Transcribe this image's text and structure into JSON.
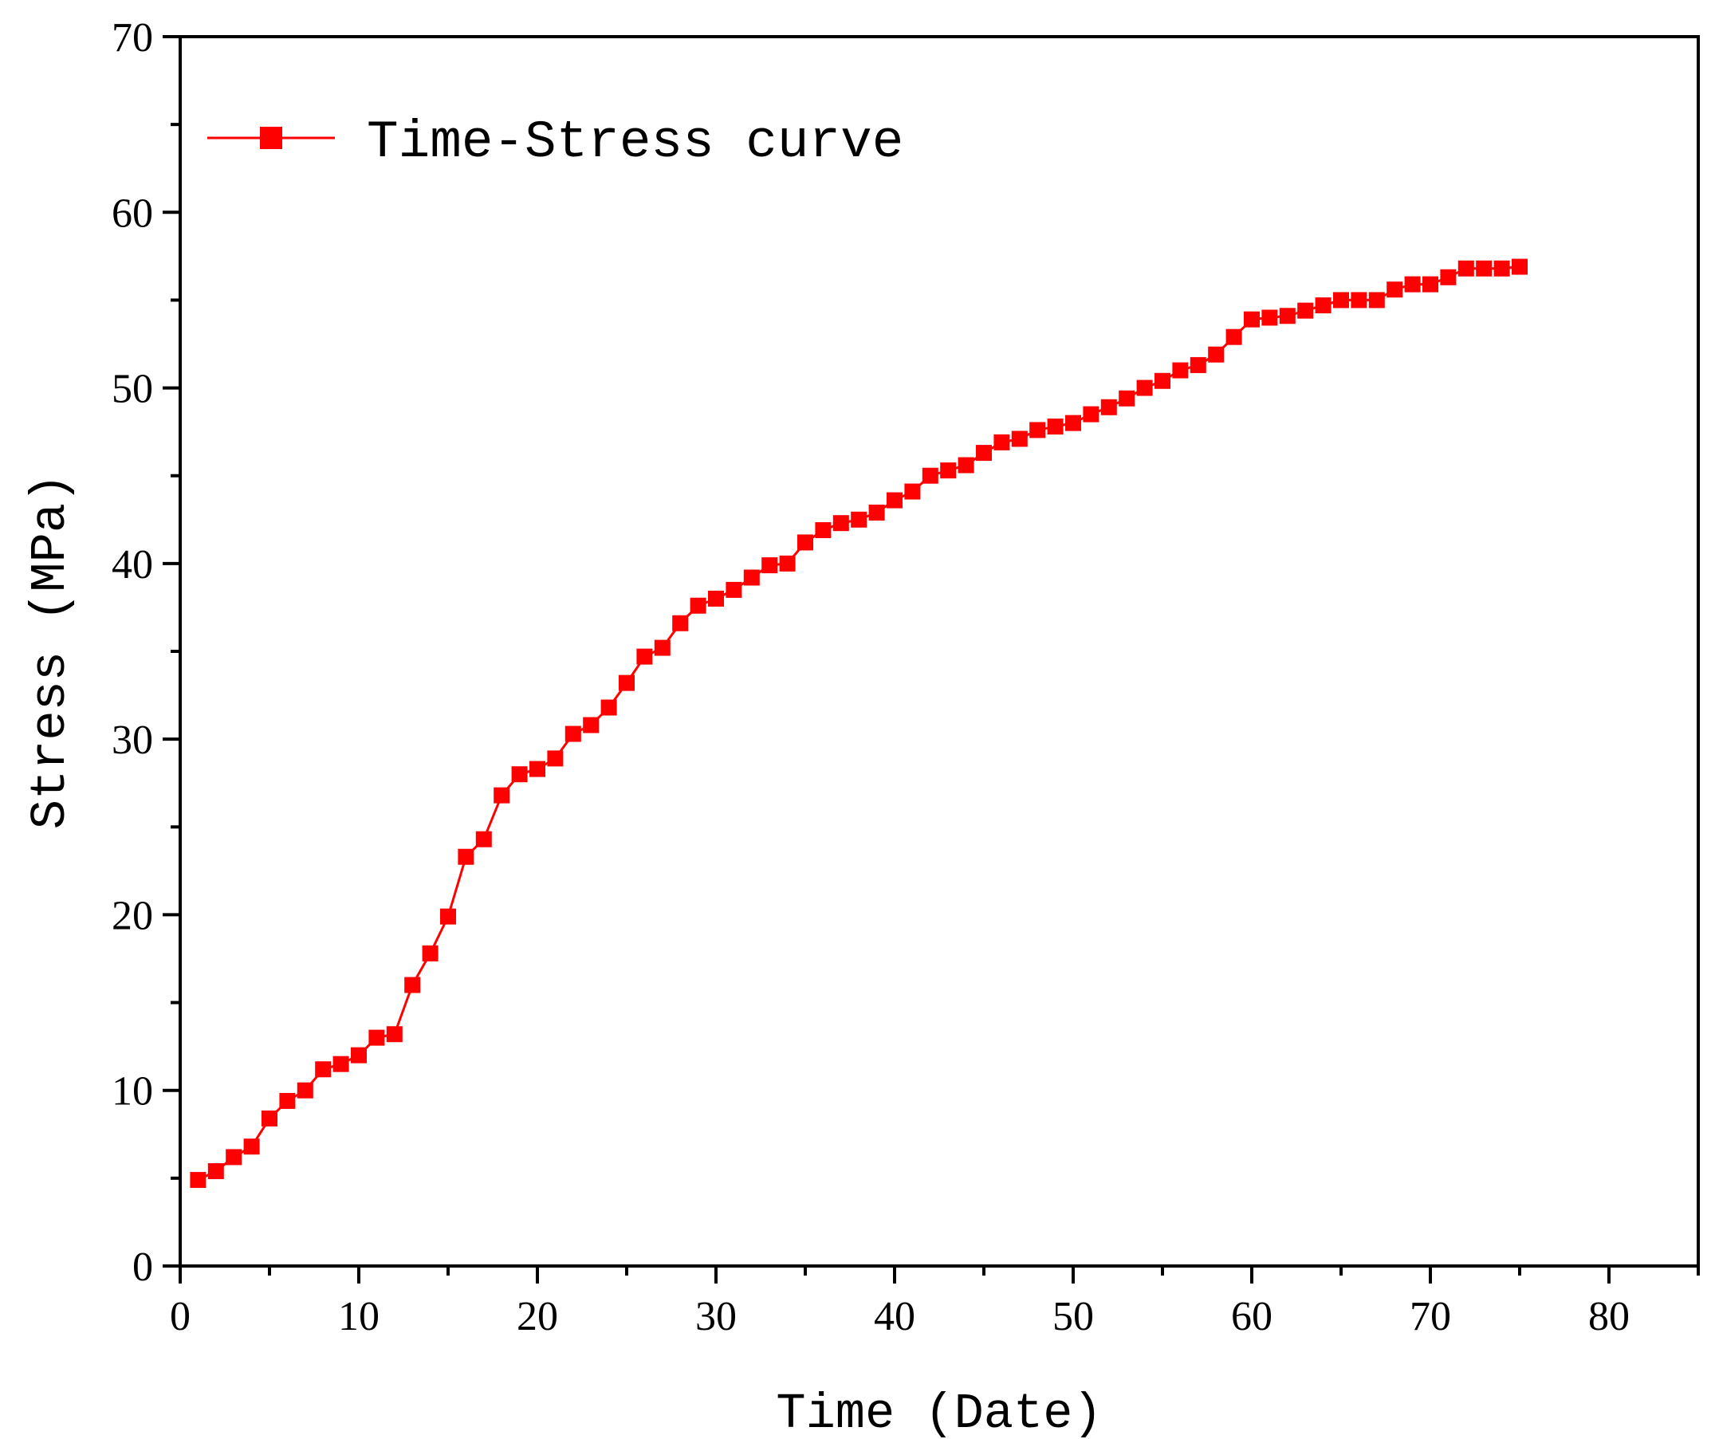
{
  "chart_data": {
    "type": "line",
    "title": "",
    "xlabel": "Time (Date)",
    "ylabel": "Stress (MPa)",
    "xlim": [
      0,
      85
    ],
    "ylim": [
      0,
      70
    ],
    "xticks": [
      0,
      10,
      20,
      30,
      40,
      50,
      60,
      70,
      80
    ],
    "yticks": [
      0,
      10,
      20,
      30,
      40,
      50,
      60,
      70
    ],
    "grid": false,
    "legend_position": "top-left",
    "series": [
      {
        "name": "Time-Stress curve",
        "color": "#ff0000",
        "marker": "square",
        "x": [
          1,
          2,
          3,
          4,
          5,
          6,
          7,
          8,
          9,
          10,
          11,
          12,
          13,
          14,
          15,
          16,
          17,
          18,
          19,
          20,
          21,
          22,
          23,
          24,
          25,
          26,
          27,
          28,
          29,
          30,
          31,
          32,
          33,
          34,
          35,
          36,
          37,
          38,
          39,
          40,
          41,
          42,
          43,
          44,
          45,
          46,
          47,
          48,
          49,
          50,
          51,
          52,
          53,
          54,
          55,
          56,
          57,
          58,
          59,
          60,
          61,
          62,
          63,
          64,
          65,
          66,
          67,
          68,
          69,
          70,
          71,
          72,
          73,
          74,
          75
        ],
        "y": [
          4.9,
          5.4,
          6.2,
          6.8,
          8.4,
          9.4,
          10.0,
          11.2,
          11.5,
          12.0,
          13.0,
          13.2,
          16.0,
          17.8,
          19.9,
          23.3,
          24.3,
          26.8,
          28.0,
          28.3,
          28.9,
          30.3,
          30.8,
          31.8,
          33.2,
          34.7,
          35.2,
          36.6,
          37.6,
          38.0,
          38.5,
          39.2,
          39.9,
          40.0,
          41.2,
          41.9,
          42.3,
          42.5,
          42.9,
          43.6,
          44.1,
          45.0,
          45.3,
          45.6,
          46.3,
          46.9,
          47.1,
          47.6,
          47.8,
          48.0,
          48.5,
          48.9,
          49.4,
          50.0,
          50.4,
          51.0,
          51.3,
          51.9,
          52.9,
          53.9,
          54.0,
          54.1,
          54.4,
          54.7,
          55.0,
          55.0,
          55.0,
          55.6,
          55.9,
          55.9,
          56.3,
          56.8,
          56.8,
          56.8,
          56.9
        ]
      }
    ]
  }
}
